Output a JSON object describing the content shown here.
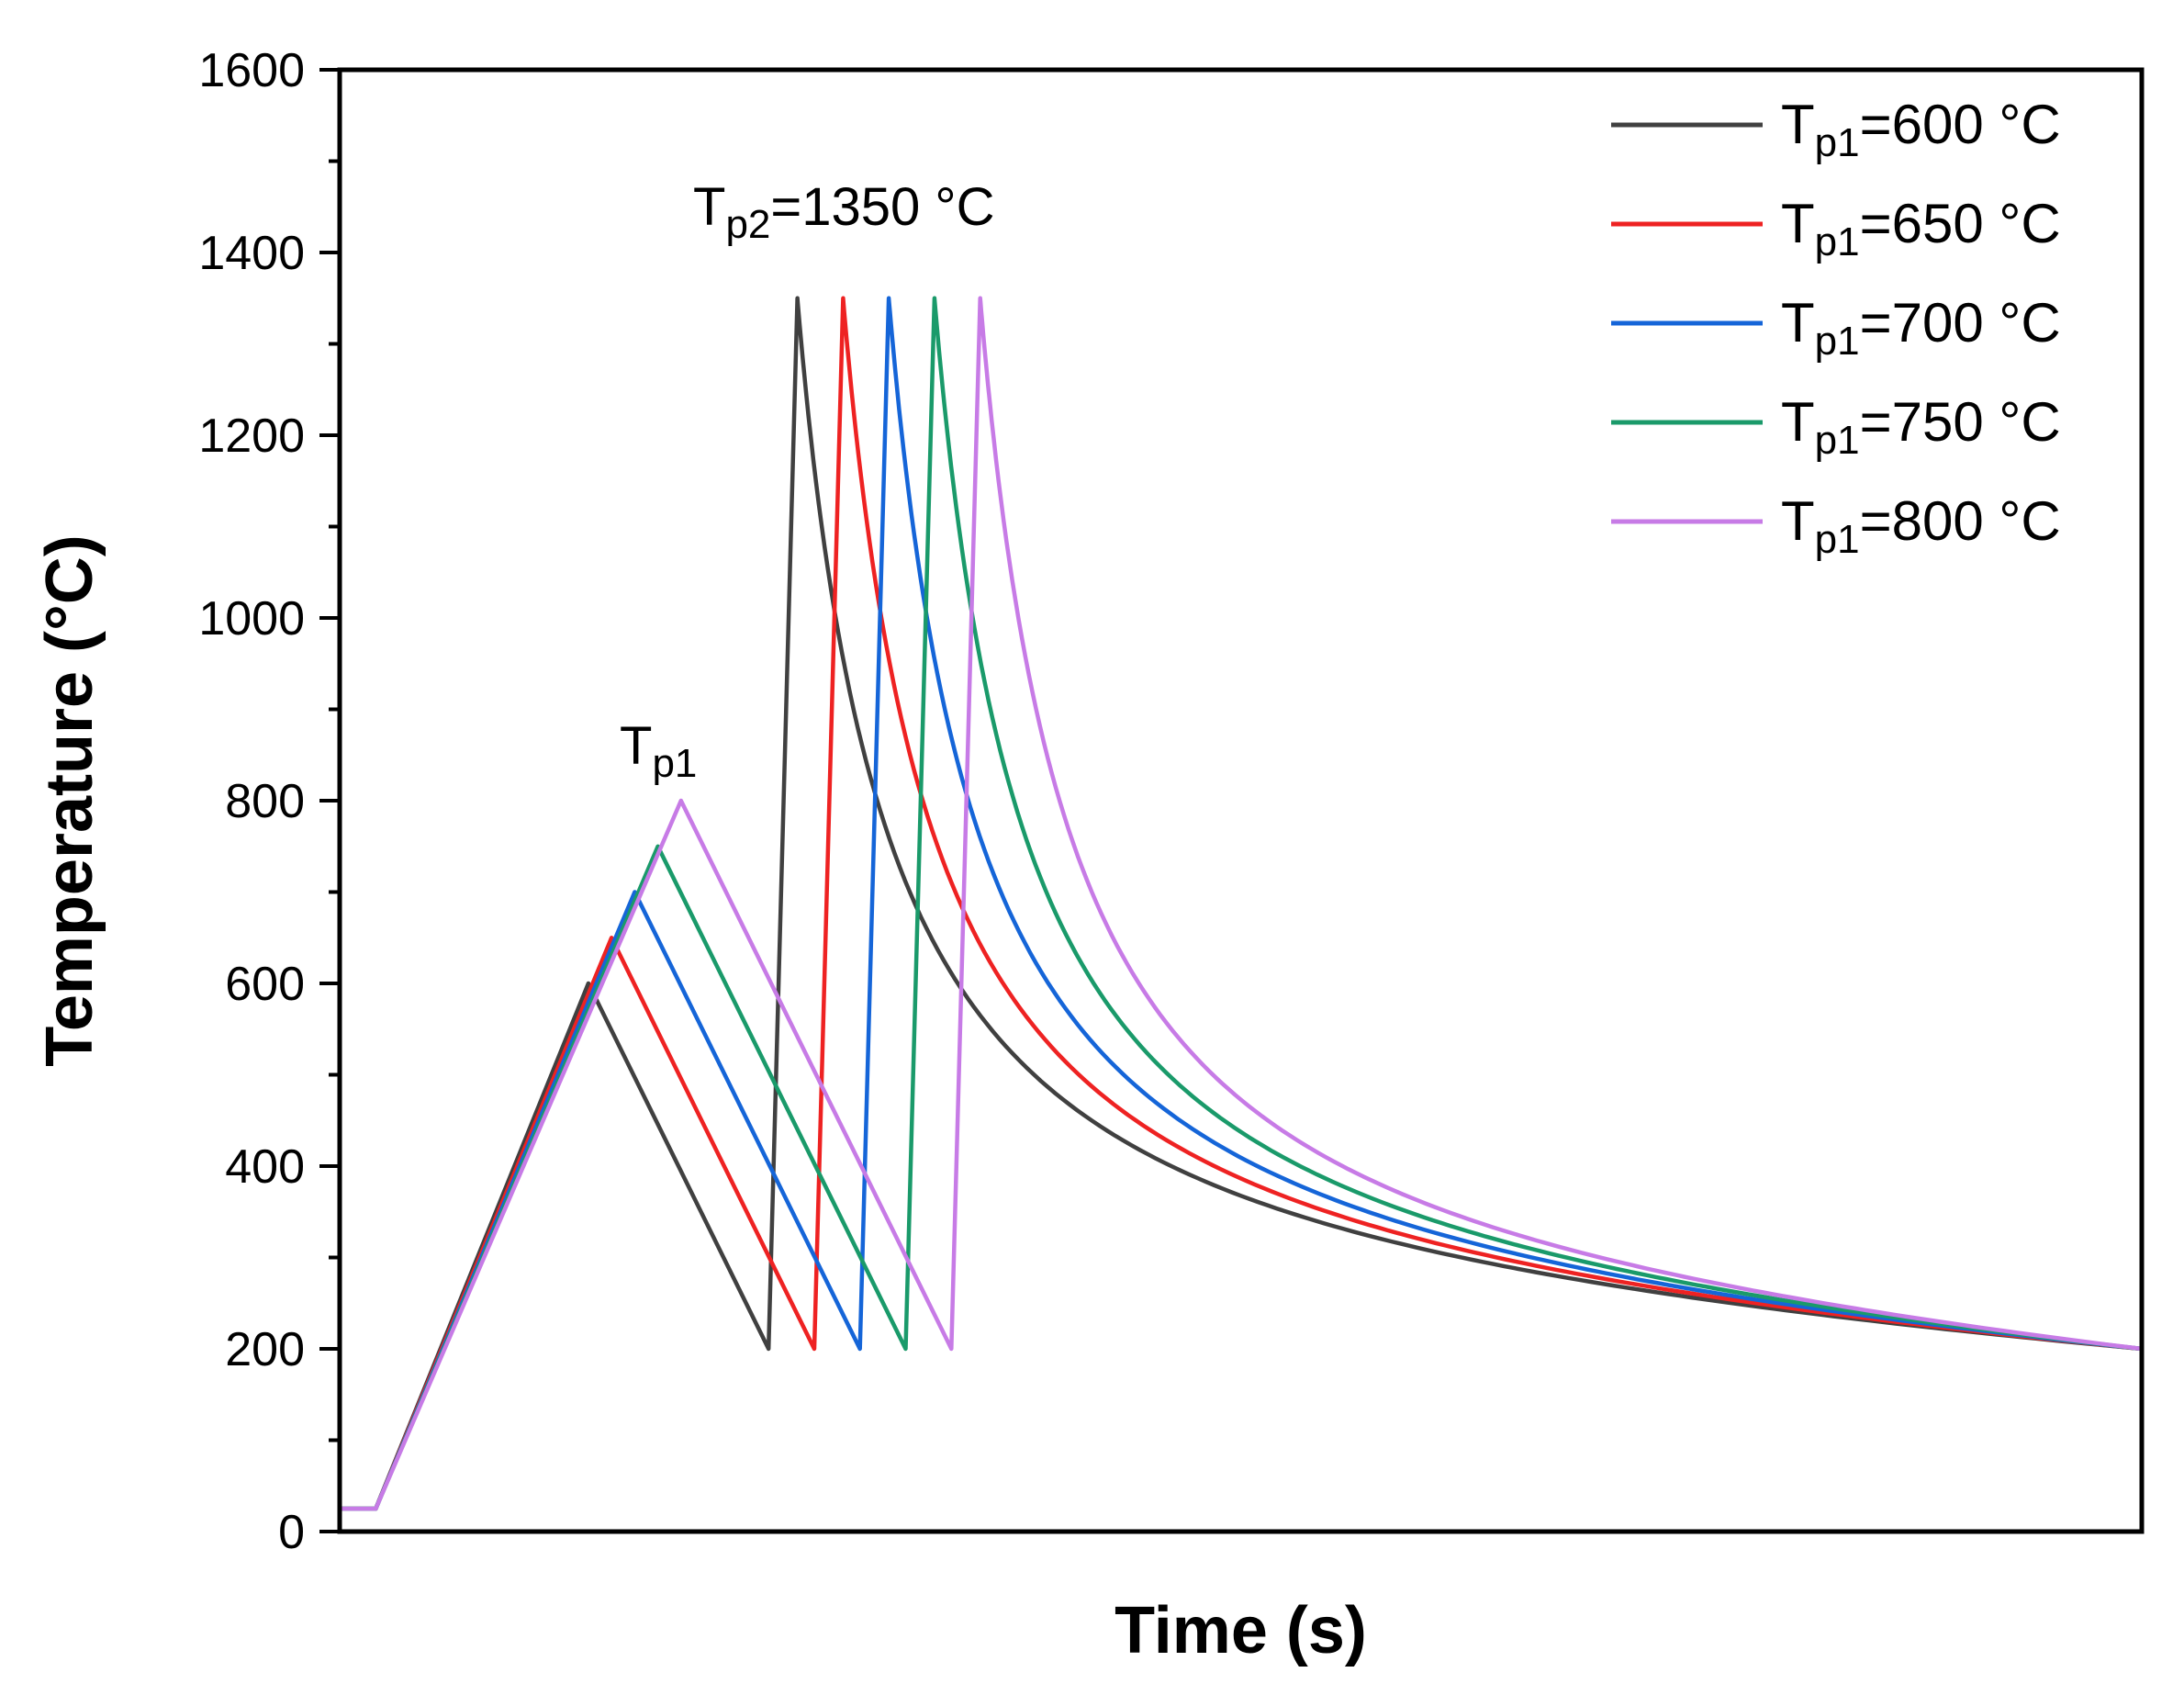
{
  "chart_data": {
    "type": "line",
    "title": "",
    "xlabel": "Time (s)",
    "ylabel": "Temperature (°C)",
    "ylim": [
      0,
      1600
    ],
    "yticks": [
      0,
      200,
      400,
      600,
      800,
      1000,
      1200,
      1400,
      1600
    ],
    "xlim": [
      0,
      100
    ],
    "x_ticks_shown": false,
    "grid": false,
    "legend_position": "top-right",
    "annotations": [
      {
        "id": "tp2",
        "base": "T",
        "sub": "p2",
        "suffix": "=1350 °C"
      },
      {
        "id": "tp1",
        "base": "T",
        "sub": "p1",
        "suffix": ""
      }
    ],
    "series": [
      {
        "name": "Tp1=600 °C",
        "label_base": "T",
        "label_sub": "p1",
        "label_suffix": "=600 °C",
        "color": "#404040",
        "tp1": 600,
        "tp2": 1350
      },
      {
        "name": "Tp1=650 °C",
        "label_base": "T",
        "label_sub": "p1",
        "label_suffix": "=650 °C",
        "color": "#ee2222",
        "tp1": 650,
        "tp2": 1350
      },
      {
        "name": "Tp1=700 °C",
        "label_base": "T",
        "label_sub": "p1",
        "label_suffix": "=700 °C",
        "color": "#1565d8",
        "tp1": 700,
        "tp2": 1350
      },
      {
        "name": "Tp1=750 °C",
        "label_base": "T",
        "label_sub": "p1",
        "label_suffix": "=750 °C",
        "color": "#1a9a6a",
        "tp1": 750,
        "tp2": 1350
      },
      {
        "name": "Tp1=800 °C",
        "label_base": "T",
        "label_sub": "p1",
        "label_suffix": "=800 °C",
        "color": "#c77be6",
        "tp1": 800,
        "tp2": 1350
      }
    ],
    "profile": {
      "start_temp": 25,
      "preheat_temp": 200,
      "final_temp": 200,
      "t_ramp_start": 2.0,
      "heat_rate_per_unit": 38.9,
      "t_first_peak_base": 13.8,
      "cool_rate_per_unit": 40.0,
      "t_second_heat": 1.6,
      "t_end": 100,
      "decay_tau": 14
    }
  }
}
